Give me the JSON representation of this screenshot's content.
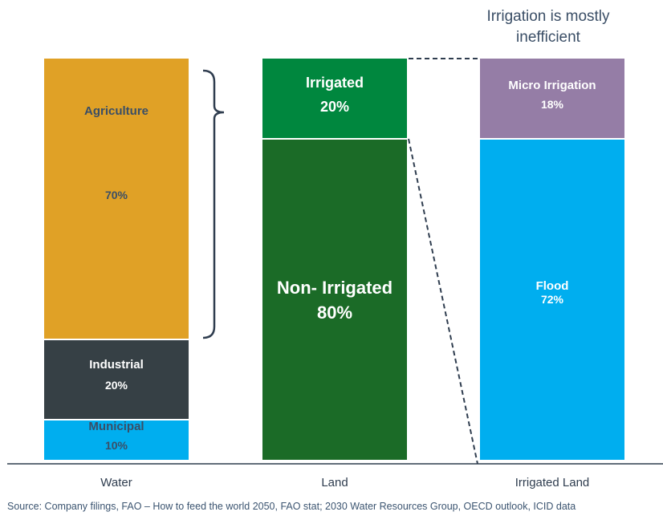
{
  "chart_data": {
    "type": "bar",
    "subtype": "stacked-100",
    "categories": [
      "Water",
      "Land",
      "Irrigated Land"
    ],
    "series": [
      {
        "name": "Agriculture",
        "category": "Water",
        "value": 70,
        "value_label": "70%",
        "color": "#E0A126",
        "text_color": "#3A4E66"
      },
      {
        "name": "Industrial",
        "category": "Water",
        "value": 20,
        "value_label": "20%",
        "color": "#364045",
        "text_color": "#FFFFFF"
      },
      {
        "name": "Municipal",
        "category": "Water",
        "value": 10,
        "value_label": "10%",
        "color": "#00AEEF",
        "text_color": "#3A4E66"
      },
      {
        "name": "Irrigated",
        "category": "Land",
        "value": 20,
        "value_label": "20%",
        "color": "#00873E",
        "text_color": "#FFFFFF"
      },
      {
        "name": "Non- Irrigated",
        "category": "Land",
        "value": 80,
        "value_label": "80%",
        "color": "#1B6B27",
        "text_color": "#FFFFFF"
      },
      {
        "name": "Micro Irrigation",
        "category": "Irrigated Land",
        "value": 18,
        "value_label": "18%",
        "color": "#957DA6",
        "text_color": "#FFFFFF"
      },
      {
        "name": "Flood",
        "category": "Irrigated Land",
        "value": 72,
        "value_label": "72%",
        "color": "#00AEEF",
        "text_color": "#FFFFFF"
      }
    ],
    "annotation": "Irrigation is mostly inefficient",
    "ylim": [
      0,
      100
    ],
    "grid": false,
    "legend": "none"
  },
  "source": "Source: Company filings, FAO – How to feed the world 2050, FAO stat; 2030 Water Resources Group, OECD outlook, ICID data",
  "colors": {
    "axis": "#2F3D4F",
    "category_label": "#2F3D4F",
    "connector": "#2F3D4F",
    "annotation": "#3A4E66"
  }
}
